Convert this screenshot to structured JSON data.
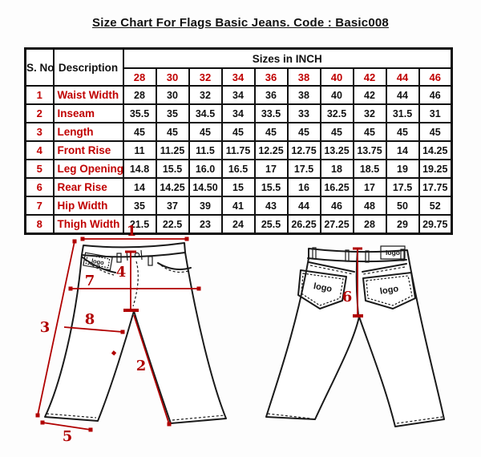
{
  "title": "Size Chart For Flags Basic Jeans. Code : Basic008",
  "table": {
    "col_serial": "S. No.",
    "col_description": "Description",
    "sizes_header": "Sizes in INCH",
    "sizes": [
      "28",
      "30",
      "32",
      "34",
      "36",
      "38",
      "40",
      "42",
      "44",
      "46"
    ],
    "rows": [
      {
        "no": "1",
        "label": "Waist Width",
        "values": [
          "28",
          "30",
          "32",
          "34",
          "36",
          "38",
          "40",
          "42",
          "44",
          "46"
        ]
      },
      {
        "no": "2",
        "label": "Inseam",
        "values": [
          "35.5",
          "35",
          "34.5",
          "34",
          "33.5",
          "33",
          "32.5",
          "32",
          "31.5",
          "31"
        ]
      },
      {
        "no": "3",
        "label": "Length",
        "values": [
          "45",
          "45",
          "45",
          "45",
          "45",
          "45",
          "45",
          "45",
          "45",
          "45"
        ]
      },
      {
        "no": "4",
        "label": "Front Rise",
        "values": [
          "11",
          "11.25",
          "11.5",
          "11.75",
          "12.25",
          "12.75",
          "13.25",
          "13.75",
          "14",
          "14.25"
        ]
      },
      {
        "no": "5",
        "label": "Leg Opening",
        "values": [
          "14.8",
          "15.5",
          "16.0",
          "16.5",
          "17",
          "17.5",
          "18",
          "18.5",
          "19",
          "19.25"
        ]
      },
      {
        "no": "6",
        "label": "Rear Rise",
        "values": [
          "14",
          "14.25",
          "14.50",
          "15",
          "15.5",
          "16",
          "16.25",
          "17",
          "17.5",
          "17.75"
        ]
      },
      {
        "no": "7",
        "label": "Hip Width",
        "values": [
          "35",
          "37",
          "39",
          "41",
          "43",
          "44",
          "46",
          "48",
          "50",
          "52"
        ]
      },
      {
        "no": "8",
        "label": "Thigh Width",
        "values": [
          "21.5",
          "22.5",
          "23",
          "24",
          "25.5",
          "26.25",
          "27.25",
          "28",
          "29",
          "29.75"
        ]
      }
    ]
  },
  "diagram": {
    "logo_text": "logo",
    "labels": {
      "waist": "1",
      "inseam": "2",
      "length": "3",
      "front_rise": "4",
      "leg_opening": "5",
      "rear_rise": "6",
      "hip_width": "7",
      "thigh_width": "8"
    }
  },
  "colors": {
    "accent_red": "#b00000",
    "table_red": "#c00000",
    "ink": "#1a1a1a"
  }
}
